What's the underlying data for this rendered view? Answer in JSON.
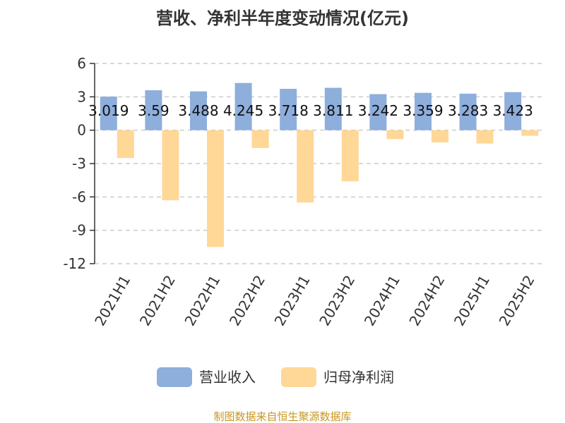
{
  "source": "制图数据来自恒生聚源数据库",
  "colors": {
    "revenue": "#8eaedc",
    "profit": "#ffd797",
    "grid": "#cccccc",
    "axis": "#333333"
  },
  "chart_data": {
    "type": "bar",
    "title": "营收、净利半年度变动情况(亿元)",
    "categories": [
      "2021H1",
      "2021H2",
      "2022H1",
      "2022H2",
      "2023H1",
      "2023H2",
      "2024H1",
      "2024H2",
      "2025H1",
      "2025H2"
    ],
    "series": [
      {
        "name": "营业收入",
        "values": [
          3.019,
          3.59,
          3.488,
          4.245,
          3.718,
          3.811,
          3.242,
          3.359,
          3.283,
          3.423
        ],
        "labels": [
          "3.019",
          "3.59",
          "3.488",
          "4.245",
          "3.718",
          "3.811",
          "3.242",
          "3.359",
          "3.283",
          "3.423"
        ]
      },
      {
        "name": "归母净利润",
        "values": [
          -2.5,
          -6.3,
          -10.5,
          -1.6,
          -6.5,
          -4.6,
          -0.8,
          -1.1,
          -1.2,
          -0.5
        ]
      }
    ],
    "yticks": [
      "6",
      "3",
      "0",
      "-3",
      "-6",
      "-9",
      "-12"
    ],
    "ylim": [
      -12,
      6
    ],
    "grid": true,
    "legend": "bottom"
  }
}
